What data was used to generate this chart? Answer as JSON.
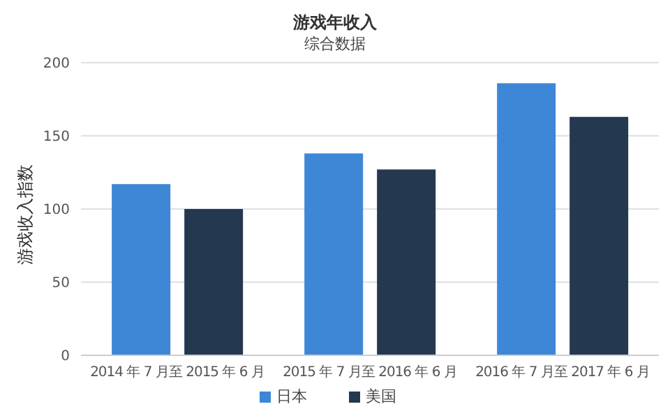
{
  "chart_data": {
    "type": "bar",
    "title": "游戏年收入",
    "subtitle": "综合数据",
    "ylabel": "游戏收入指数",
    "categories": [
      "2014 年 7 月至 2015 年 6 月",
      "2015 年 7 月至 2016 年 6 月",
      "2016 年 7 月至 2017 年 6 月"
    ],
    "series": [
      {
        "name": "日本",
        "color": "#3d87d6",
        "values": [
          117,
          138,
          186
        ]
      },
      {
        "name": "美国",
        "color": "#243850",
        "values": [
          100,
          127,
          163
        ]
      }
    ],
    "ylim": [
      0,
      200
    ],
    "yticks": [
      0,
      50,
      100,
      150,
      200
    ],
    "grid": "y",
    "legend": "bottom"
  }
}
